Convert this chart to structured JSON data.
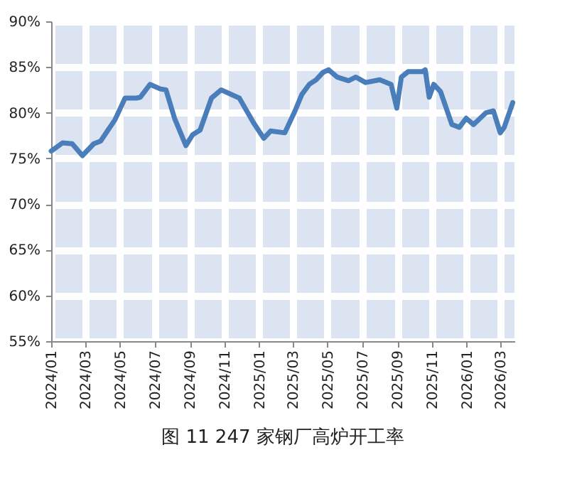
{
  "chart_data": {
    "type": "line",
    "title": "图 11 247 家钢厂高炉开工率",
    "x": [
      "2024-01-01",
      "2024-01-21",
      "2024-02-07",
      "2024-02-25",
      "2024-03-16",
      "2024-03-28",
      "2024-04-10",
      "2024-04-22",
      "2024-05-10",
      "2024-05-30",
      "2024-06-06",
      "2024-06-23",
      "2024-07-11",
      "2024-07-21",
      "2024-08-05",
      "2024-08-25",
      "2024-09-06",
      "2024-09-19",
      "2024-10-09",
      "2024-10-26",
      "2024-11-27",
      "2024-12-22",
      "2025-01-09",
      "2025-01-21",
      "2025-02-15",
      "2025-03-05",
      "2025-03-17",
      "2025-03-30",
      "2025-04-11",
      "2025-04-23",
      "2025-05-03",
      "2025-05-18",
      "2025-06-07",
      "2025-06-20",
      "2025-07-07",
      "2025-08-01",
      "2025-08-21",
      "2025-08-31",
      "2025-09-08",
      "2025-09-20",
      "2025-10-15",
      "2025-10-20",
      "2025-10-27",
      "2025-11-04",
      "2025-11-16",
      "2025-12-06",
      "2025-12-19",
      "2025-12-31",
      "2026-01-13",
      "2026-02-04",
      "2026-02-17",
      "2026-03-01",
      "2026-03-08",
      "2026-03-23"
    ],
    "values": [
      75.8,
      76.7,
      76.6,
      75.3,
      76.6,
      76.9,
      78.1,
      79.2,
      81.6,
      81.6,
      81.7,
      83.1,
      82.6,
      82.5,
      79.4,
      76.4,
      77.6,
      78.1,
      81.6,
      82.5,
      81.6,
      78.9,
      77.2,
      78.0,
      77.8,
      80.2,
      82.0,
      83.1,
      83.6,
      84.4,
      84.7,
      83.9,
      83.5,
      83.9,
      83.3,
      83.6,
      83.1,
      80.5,
      83.9,
      84.5,
      84.5,
      84.7,
      81.7,
      83.1,
      82.3,
      78.7,
      78.4,
      79.4,
      78.7,
      80.0,
      80.2,
      77.8,
      78.4,
      81.1
    ],
    "color": "#4a7ebb",
    "line_style": "solid",
    "xlim": [
      "2024-01-01",
      "2026-03-26"
    ],
    "xticks": [
      {
        "value": "2024-01-01",
        "label": "2024/01"
      },
      {
        "value": "2024-03-01",
        "label": "2024/03"
      },
      {
        "value": "2024-05-01",
        "label": "2024/05"
      },
      {
        "value": "2024-07-01",
        "label": "2024/07"
      },
      {
        "value": "2024-09-01",
        "label": "2024/09"
      },
      {
        "value": "2024-11-01",
        "label": "2024/11"
      },
      {
        "value": "2025-01-01",
        "label": "2025/01"
      },
      {
        "value": "2025-03-01",
        "label": "2025/03"
      },
      {
        "value": "2025-05-01",
        "label": "2025/05"
      },
      {
        "value": "2025-07-01",
        "label": "2025/07"
      },
      {
        "value": "2025-09-01",
        "label": "2025/09"
      },
      {
        "value": "2025-11-01",
        "label": "2025/11"
      },
      {
        "value": "2026-01-01",
        "label": "2026/01"
      },
      {
        "value": "2026-03-01",
        "label": "2026/03"
      }
    ],
    "ylim": [
      55,
      90
    ],
    "yticks": [
      {
        "value": 55,
        "label": "55%"
      },
      {
        "value": 60,
        "label": "60%"
      },
      {
        "value": 65,
        "label": "65%"
      },
      {
        "value": 70,
        "label": "70%"
      },
      {
        "value": 75,
        "label": "75%"
      },
      {
        "value": 80,
        "label": "80%"
      },
      {
        "value": 85,
        "label": "85%"
      },
      {
        "value": 90,
        "label": "90%"
      }
    ],
    "grid": true
  }
}
